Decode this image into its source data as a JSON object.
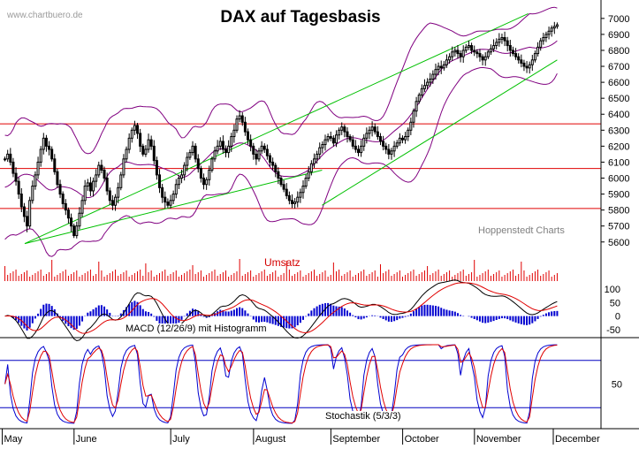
{
  "chart_data": {
    "type": "candlestick",
    "title": "DAX auf Tagesbasis",
    "watermark": "www.chartbuero.de",
    "source": "Hoppenstedt Charts",
    "x_labels": [
      "May",
      "June",
      "July",
      "August",
      "September",
      "October",
      "November",
      "December"
    ],
    "price_axis": {
      "ticks": [
        "5600",
        "5700",
        "5800",
        "5900",
        "6000",
        "6100",
        "6200",
        "6300",
        "6400",
        "6500",
        "6600",
        "6700",
        "6800",
        "6900",
        "7000"
      ],
      "ylim": [
        5560,
        7060
      ]
    },
    "horizontal_lines": [
      6340,
      6060,
      5810
    ],
    "trend_lines": [
      {
        "from_day": 0.25,
        "from_value": 5590,
        "to_day": 6.6,
        "to_value": 7030
      },
      {
        "from_day": 4.0,
        "from_value": 5830,
        "to_day": 7.0,
        "to_value": 6740
      },
      {
        "from_day": 0.25,
        "from_value": 5590,
        "to_day": 4.0,
        "to_value": 6050
      }
    ],
    "price_series": [
      {
        "month": "May",
        "points": [
          6120,
          6150,
          6100,
          6030,
          5980,
          5900,
          5820,
          5760,
          5700,
          5860,
          5950,
          6020,
          6100,
          6180,
          6250,
          6200,
          6180,
          6120,
          6040,
          5960,
          5900,
          5840,
          5800,
          5750,
          5700,
          5640
        ]
      },
      {
        "month": "June",
        "points": [
          5700,
          5780,
          5860,
          5950,
          5970,
          5920,
          5980,
          6020,
          6080,
          6050,
          6000,
          5920,
          5860,
          5830,
          5880,
          5940,
          6020,
          6120,
          6180,
          6250,
          6300,
          6330,
          6280,
          6200,
          6150,
          6180,
          6240,
          6200,
          6110,
          6020,
          5940,
          5880,
          5850,
          5830,
          5860
        ]
      },
      {
        "month": "July",
        "points": [
          5900,
          5960,
          6000,
          6020,
          6080,
          6130,
          6160,
          6200,
          6120,
          6060,
          6000,
          5960,
          5990,
          6050,
          6120,
          6170,
          6200,
          6230,
          6180,
          6160,
          6200,
          6260,
          6300,
          6370,
          6390,
          6350,
          6290,
          6240,
          6200,
          6150
        ]
      },
      {
        "month": "August",
        "points": [
          6120,
          6170,
          6200,
          6180,
          6140,
          6100,
          6080,
          6040,
          6000,
          5960,
          5930,
          5890,
          5860,
          5840,
          5850,
          5880,
          5910,
          5950,
          6000,
          6040,
          6090,
          6120,
          6150,
          6190,
          6210,
          6240,
          6260,
          6250
        ]
      },
      {
        "month": "September",
        "points": [
          6220,
          6270,
          6300,
          6320,
          6290,
          6260,
          6240,
          6200,
          6180,
          6160,
          6200,
          6250,
          6280,
          6300,
          6320,
          6290,
          6260,
          6230,
          6200,
          6180,
          6150,
          6170,
          6200,
          6220,
          6250,
          6240
        ]
      },
      {
        "month": "October",
        "points": [
          6260,
          6300,
          6350,
          6420,
          6480,
          6520,
          6560,
          6580,
          6600,
          6620,
          6650,
          6680,
          6700,
          6690,
          6710,
          6740,
          6760,
          6790,
          6800,
          6780,
          6760,
          6800,
          6820,
          6830,
          6800,
          6790
        ]
      },
      {
        "month": "November",
        "points": [
          6780,
          6760,
          6740,
          6760,
          6790,
          6810,
          6830,
          6850,
          6870,
          6880,
          6860,
          6830,
          6800,
          6780,
          6760,
          6740,
          6720,
          6700,
          6690,
          6710,
          6740,
          6780,
          6820,
          6860,
          6880,
          6900,
          6920,
          6940,
          6950,
          6960
        ]
      }
    ],
    "volume_label": "Umsatz",
    "macd": {
      "label": "MACD (12/26/9) mit Histogramm",
      "ticks": [
        "100",
        "50",
        "0",
        "-50"
      ],
      "ylim": [
        -80,
        130
      ]
    },
    "stochastic": {
      "label": "Stochastik (5/3/3)",
      "ticks": [
        "50"
      ],
      "ylim": [
        0,
        100
      ],
      "levels": [
        80,
        20
      ]
    },
    "colors": {
      "price": "#000000",
      "bollinger": "#800080",
      "horizontal_lines": "#e00000",
      "trend_lines": "#00c000",
      "volume": "#e00000",
      "macd_line": "#000000",
      "signal_line": "#e00000",
      "histogram": "#0000d0",
      "stoch_k": "#0000d0",
      "stoch_d": "#e00000",
      "stoch_levels": "#0000c0"
    }
  }
}
